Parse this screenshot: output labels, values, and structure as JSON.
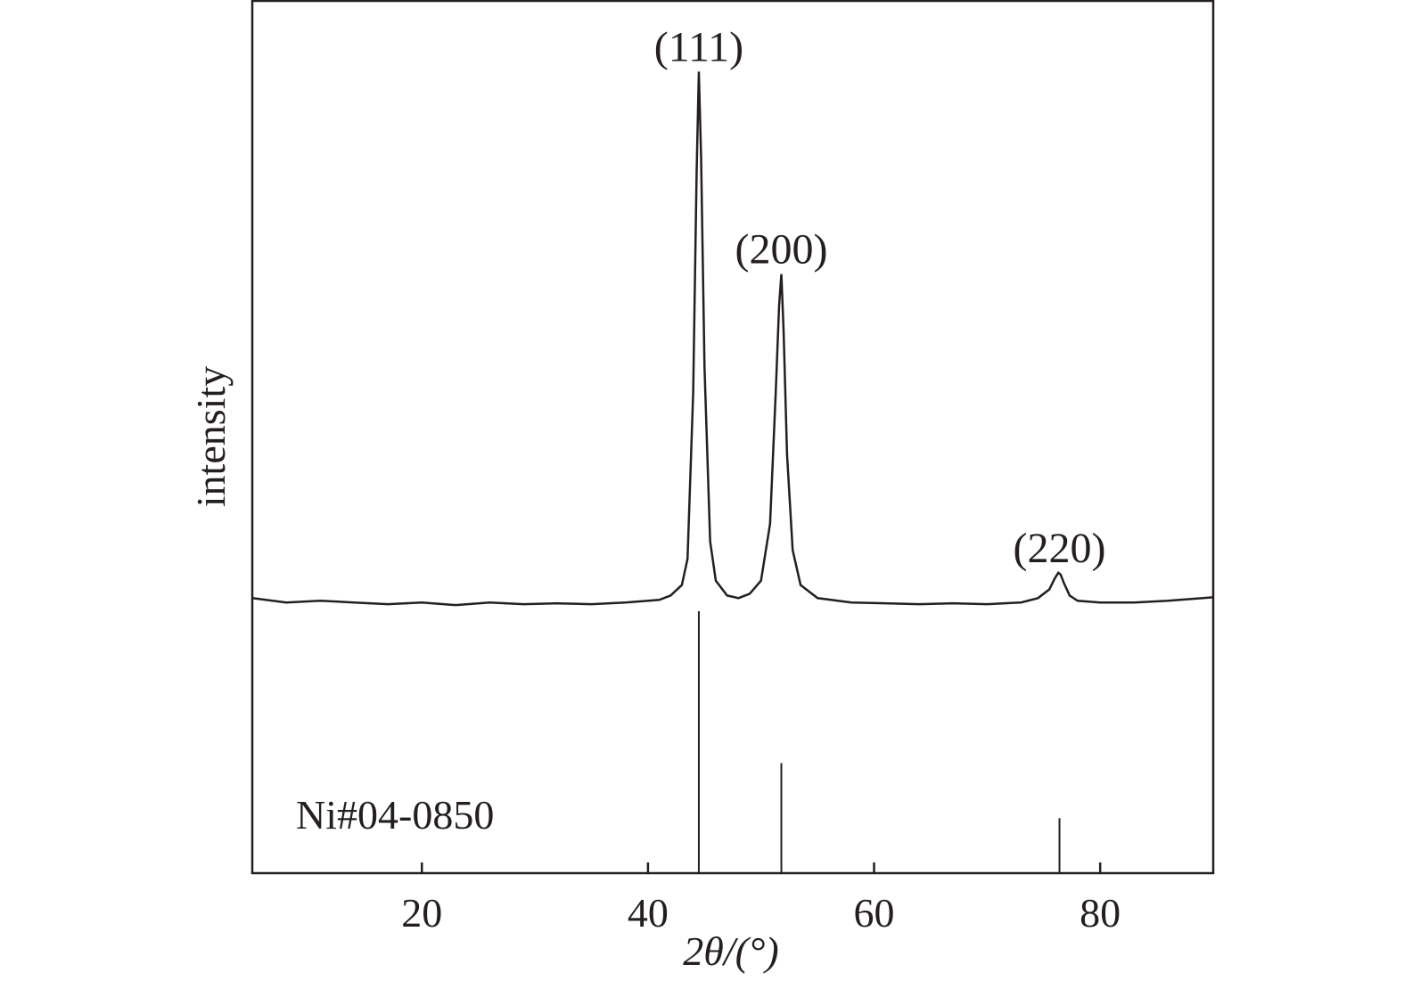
{
  "chart_data": {
    "type": "line",
    "x_label": "2θ/(°)",
    "y_label": "intensity",
    "xlim": [
      5,
      90
    ],
    "xticks": [
      20,
      40,
      60,
      80
    ],
    "ylim": [
      0,
      100
    ],
    "x": [
      5,
      8,
      11,
      14,
      17,
      20,
      23,
      26,
      29,
      32,
      35,
      38,
      41,
      42,
      43,
      43.5,
      44,
      44.3,
      44.5,
      44.7,
      45,
      45.5,
      46,
      47,
      48,
      49,
      50,
      50.8,
      51.3,
      51.6,
      51.8,
      52,
      52.3,
      52.8,
      53.5,
      55,
      58,
      61,
      64,
      67,
      70,
      73,
      74.5,
      75.5,
      76,
      76.3,
      76.5,
      76.8,
      77.3,
      78,
      80,
      83,
      86,
      90
    ],
    "series": [
      {
        "color": "#231f20",
        "values": [
          31.5,
          31.0,
          31.2,
          31.0,
          30.8,
          31.0,
          30.7,
          31.0,
          30.8,
          30.9,
          30.8,
          31.0,
          31.3,
          31.8,
          33.0,
          36,
          55,
          80,
          91.8,
          82,
          58,
          38,
          33.5,
          31.8,
          31.5,
          32,
          33.5,
          40,
          55,
          65,
          68.6,
          62,
          48,
          37,
          33,
          31.5,
          31,
          30.9,
          30.8,
          30.9,
          30.8,
          31,
          31.5,
          32.5,
          33.8,
          34.4,
          34.2,
          33.2,
          31.8,
          31.2,
          31,
          31,
          31.2,
          31.6
        ]
      }
    ],
    "reference": {
      "name": "Ni#04-0850",
      "color": "#231f20",
      "x": [
        44.5,
        51.8,
        76.4
      ],
      "values": [
        30,
        12.6,
        6.3
      ],
      "peak_labels": [
        "(111)",
        "(200)",
        "(220)"
      ]
    }
  }
}
